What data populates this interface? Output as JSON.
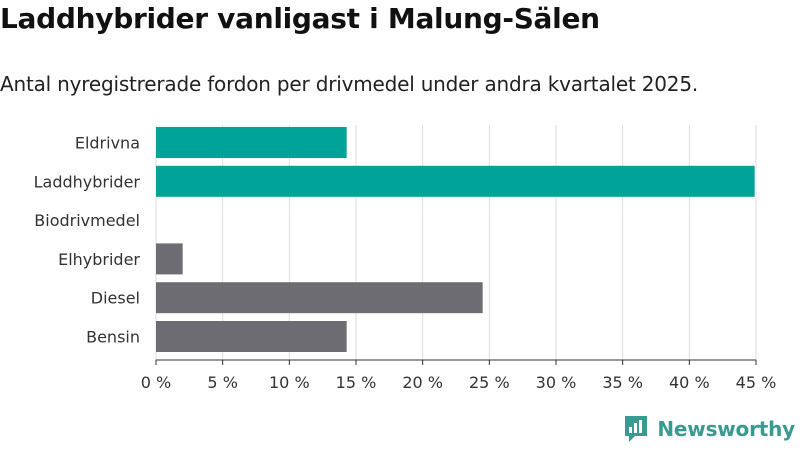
{
  "header": {
    "title": "Laddhybrider vanligast i Malung-Sälen",
    "subtitle": "Antal nyregistrerade fordon per drivmedel under andra kvartalet 2025."
  },
  "brand": {
    "name": "Newsworthy",
    "icon": "newsworthy-logo-icon",
    "color": "#3a9a92"
  },
  "chart_data": {
    "type": "bar",
    "orientation": "horizontal",
    "categories": [
      "Eldrivna",
      "Laddhybrider",
      "Biodrivmedel",
      "Elhybrider",
      "Diesel",
      "Bensin"
    ],
    "values": [
      14.3,
      44.9,
      0,
      2.0,
      24.5,
      14.3
    ],
    "colors": [
      "#00a398",
      "#00a398",
      "#00a398",
      "#6d6c73",
      "#6d6c73",
      "#6d6c73"
    ],
    "xlim": [
      0,
      45
    ],
    "xticks": [
      0,
      5,
      10,
      15,
      20,
      25,
      30,
      35,
      40,
      45
    ],
    "xtick_labels": [
      "0 %",
      "5 %",
      "10 %",
      "15 %",
      "20 %",
      "25 %",
      "30 %",
      "35 %",
      "40 %",
      "45 %"
    ],
    "grid": true,
    "legend": "none"
  }
}
